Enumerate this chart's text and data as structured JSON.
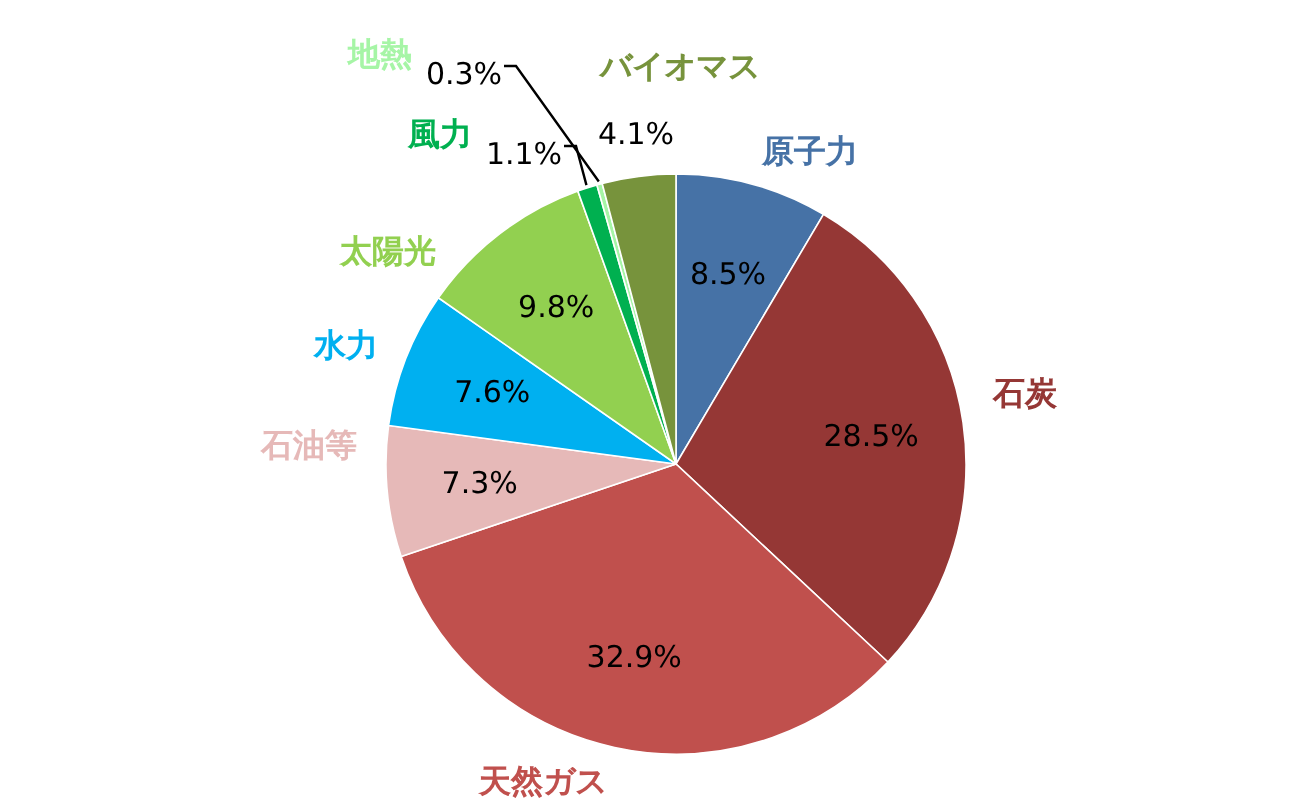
{
  "chart_data": {
    "type": "pie",
    "categories": [
      "原子力",
      "石炭",
      "天然ガス",
      "石油等",
      "水力",
      "太陽光",
      "風力",
      "地熱",
      "バイオマス"
    ],
    "values": [
      8.5,
      28.5,
      32.9,
      7.3,
      7.6,
      9.8,
      1.1,
      0.3,
      4.1
    ],
    "colors": [
      "#4672a6",
      "#953735",
      "#c0504d",
      "#e6b9b8",
      "#00b0f0",
      "#92d050",
      "#00b050",
      "#a6f5a6",
      "#77933c"
    ],
    "value_labels": [
      "8.5%",
      "28.5%",
      "32.9%",
      "7.3%",
      "7.6%",
      "9.8%",
      "1.1%",
      "0.3%",
      "4.1%"
    ]
  }
}
